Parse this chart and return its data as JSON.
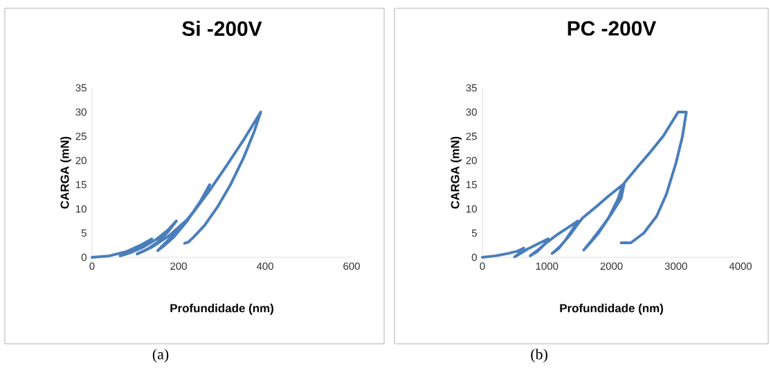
{
  "chart_data": [
    {
      "type": "line",
      "title": "Si -200V",
      "xlabel": "Profundidade (nm)",
      "ylabel": "CARGA (mN)",
      "annotations": [
        "(a)"
      ],
      "xlim": [
        0,
        600
      ],
      "xticks": [
        0,
        200,
        400,
        600
      ],
      "ylim": [
        0,
        35
      ],
      "yticks": [
        0,
        5,
        10,
        15,
        20,
        25,
        30,
        35
      ],
      "series": [
        {
          "color": "#4a7ebb",
          "x": [
            0,
            40,
            80,
            110,
            138,
            120,
            100,
            80,
            65,
            90,
            120,
            150,
            175,
            195,
            175,
            150,
            125,
            104,
            140,
            180,
            220,
            250,
            272,
            250,
            220,
            190,
            165,
            152,
            190,
            230,
            270,
            310,
            350,
            390,
            375,
            350,
            320,
            290,
            260,
            235,
            222,
            214
          ],
          "values": [
            0,
            0.3,
            1.2,
            2.4,
            3.8,
            2.6,
            1.5,
            0.7,
            0.3,
            1.0,
            2.2,
            3.8,
            5.6,
            7.5,
            5.2,
            3.0,
            1.5,
            0.7,
            2.2,
            4.6,
            7.8,
            11.2,
            15,
            11.5,
            7.5,
            4.3,
            2.3,
            1.4,
            4.8,
            8.8,
            13.6,
            18.8,
            24.2,
            30,
            26,
            20.5,
            15,
            10.4,
            6.6,
            4.2,
            3.1,
            2.9
          ]
        }
      ]
    },
    {
      "type": "line",
      "title": "PC -200V",
      "xlabel": "Profundidade (nm)",
      "ylabel": "CARGA (mN)",
      "annotations": [
        "(b)"
      ],
      "xlim": [
        0,
        4000
      ],
      "xticks": [
        0,
        1000,
        2000,
        3000,
        4000
      ],
      "ylim": [
        0,
        35
      ],
      "yticks": [
        0,
        5,
        10,
        15,
        20,
        25,
        30,
        35
      ],
      "series": [
        {
          "color": "#4a7ebb",
          "x": [
            0,
            200,
            400,
            550,
            640,
            600,
            550,
            500,
            600,
            700,
            850,
            1020,
            950,
            850,
            740,
            850,
            1000,
            1150,
            1300,
            1480,
            1400,
            1300,
            1180,
            1080,
            1200,
            1350,
            1480,
            1550,
            1750,
            1950,
            2175,
            2100,
            1950,
            1800,
            1650,
            1570,
            1700,
            1850,
            2000,
            2150,
            2200,
            2400,
            2600,
            2800,
            3033,
            3160,
            3100,
            3000,
            2850,
            2700,
            2500,
            2300,
            2250,
            2150
          ],
          "values": [
            0,
            0.3,
            0.8,
            1.3,
            1.9,
            1.2,
            0.6,
            0.1,
            0.9,
            1.7,
            2.7,
            3.8,
            2.5,
            1.2,
            0.3,
            1.4,
            3.1,
            4.6,
            5.9,
            7.5,
            5.8,
            3.8,
            1.8,
            0.8,
            2.2,
            4.5,
            6.9,
            8.1,
            10.3,
            12.6,
            15,
            12,
            8,
            5,
            2.7,
            1.5,
            3.6,
            6.2,
            9,
            12.2,
            15.4,
            18.6,
            21.7,
            25,
            30,
            30,
            25,
            19.5,
            13,
            8.5,
            5,
            3,
            3,
            3
          ]
        }
      ]
    }
  ]
}
